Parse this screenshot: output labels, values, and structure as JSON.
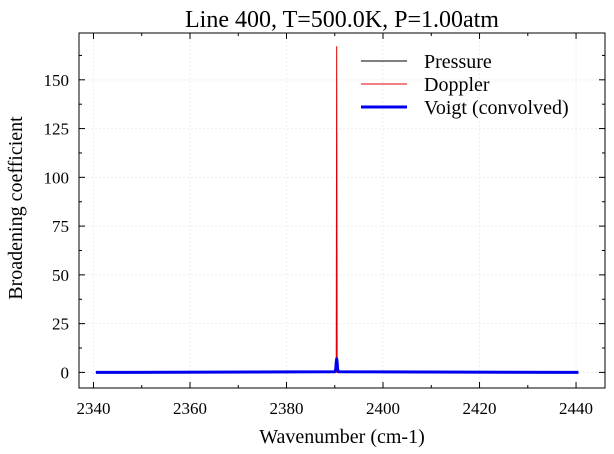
{
  "chart_data": {
    "type": "line",
    "title": "Line 400, T=500.0K, P=1.00atm",
    "xlabel": "Wavenumber (cm-1)",
    "ylabel": "Broadening coefficient",
    "xlim": [
      2337,
      2446
    ],
    "ylim": [
      -8,
      174
    ],
    "xticks": [
      2340,
      2360,
      2380,
      2400,
      2420,
      2440
    ],
    "xtick_labels": [
      "2340",
      "2360",
      "2380",
      "2400",
      "2420",
      "2440"
    ],
    "yticks": [
      0,
      25,
      50,
      75,
      100,
      125,
      150
    ],
    "ytick_labels": [
      "0",
      "25",
      "50",
      "75",
      "100",
      "125",
      "150"
    ],
    "grid": true,
    "legend_position": "top-right",
    "series": [
      {
        "name": "Pressure",
        "color": "#000000",
        "width": 1,
        "points": [
          [
            2340.5,
            0
          ],
          [
            2390.0,
            0.1
          ],
          [
            2390.4,
            0.6
          ],
          [
            2390.5,
            0.2
          ],
          [
            2391.0,
            0
          ],
          [
            2440.5,
            0
          ]
        ]
      },
      {
        "name": "Doppler",
        "color": "#e00000",
        "width": 1,
        "points": [
          [
            2340.5,
            0
          ],
          [
            2390.3,
            0
          ],
          [
            2390.4,
            167
          ],
          [
            2390.5,
            0
          ],
          [
            2440.5,
            0
          ]
        ]
      },
      {
        "name": "Voigt (convolved)",
        "color": "#0000ee",
        "width": 3,
        "points": [
          [
            2340.5,
            0
          ],
          [
            2390.0,
            0.3
          ],
          [
            2390.2,
            1.5
          ],
          [
            2390.3,
            5
          ],
          [
            2390.4,
            7
          ],
          [
            2390.5,
            5
          ],
          [
            2390.6,
            1.5
          ],
          [
            2390.8,
            0.3
          ],
          [
            2440.5,
            0
          ]
        ]
      }
    ]
  }
}
